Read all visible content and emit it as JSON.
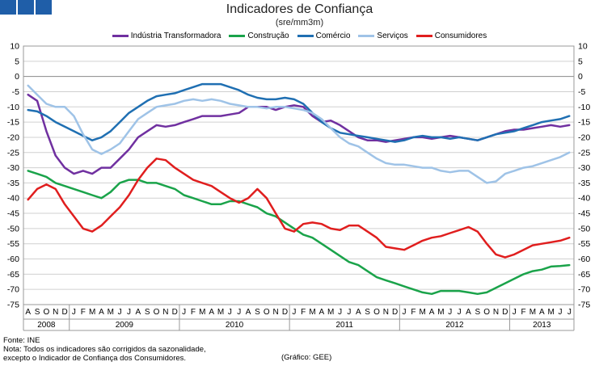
{
  "header": {
    "title": "Indicadores de Confiança",
    "subtitle": "(sre/mm3m)"
  },
  "footer": {
    "source": "Fonte: INE",
    "note_line1": "Nota: Todos os indicadores são corrigidos da sazonalidade,",
    "note_line2": "excepto o Indicador de Confiança dos Consumidores.",
    "credit": "(Gráfico: GEE)"
  },
  "chart_data": {
    "type": "line",
    "ylim": [
      -75,
      10
    ],
    "yticks": [
      10,
      5,
      0,
      -5,
      -10,
      -15,
      -20,
      -25,
      -30,
      -35,
      -40,
      -45,
      -50,
      -55,
      -60,
      -65,
      -70,
      -75
    ],
    "grid": true,
    "legend_position": "top",
    "x": [
      "A",
      "S",
      "O",
      "N",
      "D",
      "J",
      "F",
      "M",
      "A",
      "M",
      "J",
      "J",
      "A",
      "S",
      "O",
      "N",
      "D",
      "J",
      "F",
      "M",
      "A",
      "M",
      "J",
      "J",
      "A",
      "S",
      "O",
      "N",
      "D",
      "J",
      "F",
      "M",
      "A",
      "M",
      "J",
      "J",
      "A",
      "S",
      "O",
      "N",
      "D",
      "J",
      "F",
      "M",
      "A",
      "M",
      "J",
      "J",
      "A",
      "S",
      "O",
      "N",
      "D",
      "J",
      "F",
      "M",
      "A",
      "M",
      "J",
      "J"
    ],
    "years": [
      {
        "label": "2008",
        "start": 0,
        "end": 4
      },
      {
        "label": "2009",
        "start": 5,
        "end": 16
      },
      {
        "label": "2010",
        "start": 17,
        "end": 28
      },
      {
        "label": "2011",
        "start": 29,
        "end": 40
      },
      {
        "label": "2012",
        "start": 41,
        "end": 52
      },
      {
        "label": "2013",
        "start": 53,
        "end": 59
      }
    ],
    "series": [
      {
        "name": "Indústria Transformadora",
        "color": "#7030a0",
        "values": [
          -6,
          -8,
          -18,
          -26,
          -30,
          -32,
          -31,
          -32,
          -30,
          -30,
          -27,
          -24,
          -20,
          -18,
          -16,
          -16.5,
          -16,
          -15,
          -14,
          -13,
          -13,
          -13,
          -12.5,
          -12,
          -10,
          -10,
          -10,
          -11,
          -10,
          -9.5,
          -10,
          -13,
          -15,
          -14.5,
          -16,
          -18,
          -20,
          -21,
          -21,
          -21.5,
          -21,
          -20.5,
          -20,
          -20,
          -20.5,
          -20,
          -19.5,
          -20,
          -20.5,
          -21,
          -20,
          -19,
          -18,
          -17.5,
          -17.5,
          -17,
          -16.5,
          -16,
          -16.5,
          -16
        ]
      },
      {
        "name": "Construção",
        "color": "#1aa34a",
        "values": [
          -31,
          -32,
          -33,
          -35,
          -36,
          -37,
          -38,
          -39,
          -40,
          -38,
          -35,
          -34,
          -34,
          -35,
          -35,
          -36,
          -37,
          -39,
          -40,
          -41,
          -42,
          -42,
          -41,
          -41,
          -42,
          -43,
          -45,
          -46,
          -48,
          -50,
          -52,
          -53,
          -55,
          -57,
          -59,
          -61,
          -62,
          -64,
          -66,
          -67,
          -68,
          -69,
          -70,
          -71,
          -71.5,
          -70.5,
          -70.5,
          -70.5,
          -71,
          -71.5,
          -71,
          -69.5,
          -68,
          -66.5,
          -65,
          -64,
          -63.5,
          -62.5,
          -62.3,
          -62
        ]
      },
      {
        "name": "Comércio",
        "color": "#1f6fb2",
        "values": [
          -11,
          -11.5,
          -13,
          -15,
          -16.5,
          -18,
          -19.5,
          -21,
          -20,
          -18,
          -15,
          -12,
          -10,
          -8,
          -6.5,
          -6,
          -5.5,
          -4.5,
          -3.5,
          -2.5,
          -2.5,
          -2.5,
          -3.5,
          -4.5,
          -6,
          -7,
          -7.5,
          -7.5,
          -7,
          -7.5,
          -9,
          -12,
          -15,
          -17,
          -18.5,
          -19,
          -19.5,
          -20,
          -20.5,
          -21,
          -21.5,
          -21,
          -20,
          -19.5,
          -20,
          -20,
          -20.5,
          -20,
          -20.5,
          -21,
          -20,
          -19,
          -18.5,
          -18,
          -17,
          -16,
          -15,
          -14.5,
          -14,
          -13
        ]
      },
      {
        "name": "Serviços",
        "color": "#9fc3e7",
        "values": [
          -3,
          -6,
          -9,
          -10,
          -10,
          -13,
          -19,
          -24,
          -25.5,
          -24,
          -22,
          -18,
          -14,
          -12,
          -10,
          -9.5,
          -9,
          -8,
          -7.5,
          -8,
          -7.5,
          -8,
          -9,
          -9.5,
          -10,
          -10,
          -10.5,
          -10,
          -10,
          -10.5,
          -11,
          -12,
          -14,
          -17,
          -20,
          -22,
          -23,
          -25,
          -27,
          -28.5,
          -29,
          -29,
          -29.5,
          -30,
          -30,
          -31,
          -31.5,
          -31,
          -31,
          -33,
          -35,
          -34.5,
          -32,
          -31,
          -30,
          -29.5,
          -28.5,
          -27.5,
          -26.5,
          -25
        ]
      },
      {
        "name": "Consumidores",
        "color": "#e01e1e",
        "values": [
          -40.5,
          -37,
          -35.5,
          -37,
          -42,
          -46,
          -50,
          -51,
          -49,
          -46,
          -43,
          -39,
          -34,
          -30,
          -27,
          -27.5,
          -30,
          -32,
          -34,
          -35,
          -36,
          -38,
          -40,
          -41.5,
          -40,
          -37,
          -40,
          -45,
          -50,
          -51,
          -48.5,
          -48,
          -48.5,
          -50,
          -50.5,
          -49,
          -49,
          -51,
          -53,
          -56,
          -56.5,
          -57,
          -55.5,
          -54,
          -53,
          -52.5,
          -51.5,
          -50.5,
          -49.5,
          -51,
          -55,
          -58.5,
          -59.5,
          -58.5,
          -57,
          -55.5,
          -55,
          -54.5,
          -54,
          -53
        ]
      }
    ]
  }
}
